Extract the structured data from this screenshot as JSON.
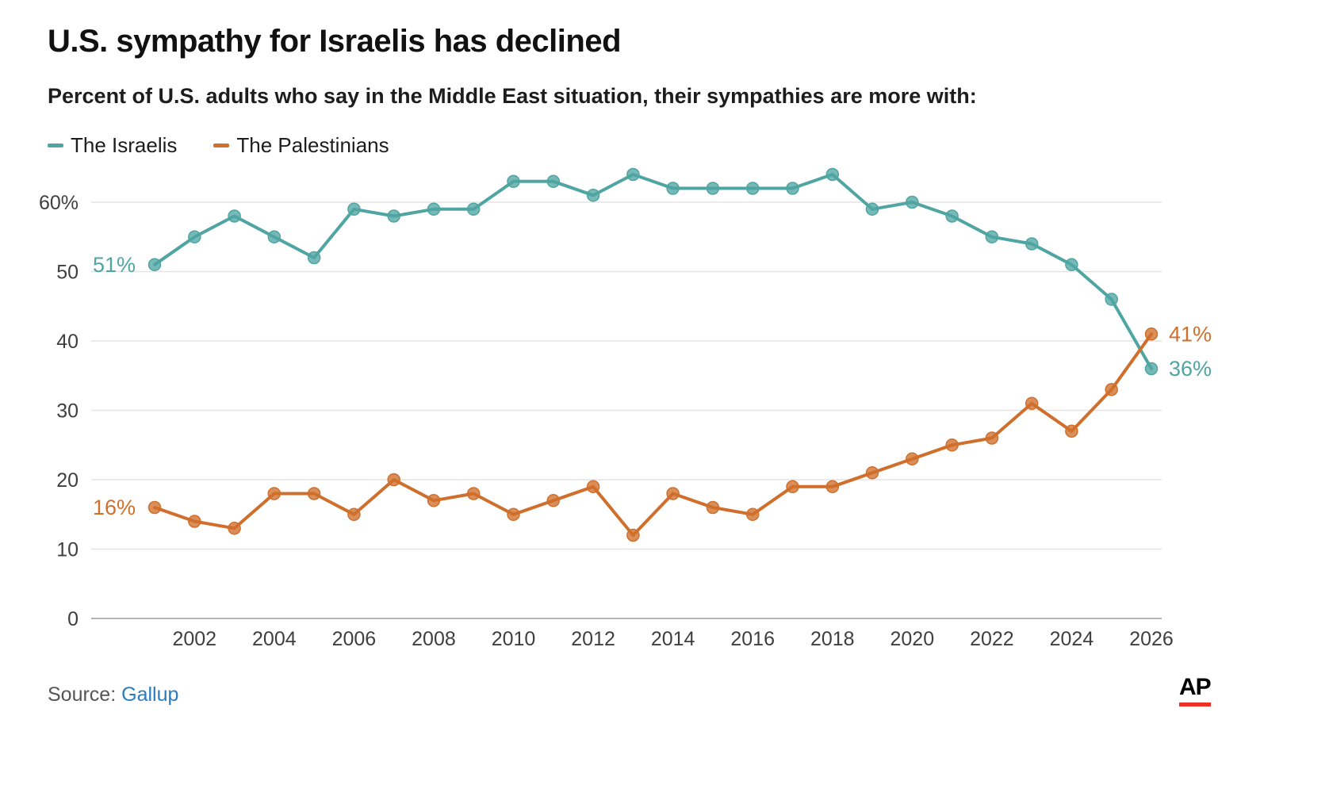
{
  "header": {
    "title": "U.S. sympathy for Israelis has declined",
    "subtitle": "Percent of U.S. adults who say in the Middle East situation, their sympathies are more with:"
  },
  "legend": [
    {
      "label": "The Israelis",
      "color": "#4fa5a2"
    },
    {
      "label": "The Palestinians",
      "color": "#d06f2c"
    }
  ],
  "chart_data": {
    "type": "line",
    "x": [
      2001,
      2002,
      2003,
      2004,
      2005,
      2006,
      2007,
      2008,
      2009,
      2010,
      2011,
      2012,
      2013,
      2014,
      2015,
      2016,
      2017,
      2018,
      2019,
      2020,
      2021,
      2022,
      2023,
      2024,
      2025,
      2026
    ],
    "series": [
      {
        "name": "The Israelis",
        "color": "#4fa5a2",
        "values": [
          51,
          55,
          58,
          55,
          52,
          59,
          58,
          59,
          59,
          63,
          63,
          61,
          64,
          62,
          62,
          62,
          62,
          64,
          59,
          60,
          58,
          55,
          54,
          51,
          46,
          36
        ],
        "start_label": "51%",
        "end_label": "36%"
      },
      {
        "name": "The Palestinians",
        "color": "#d06f2c",
        "values": [
          16,
          14,
          13,
          18,
          18,
          15,
          20,
          17,
          18,
          15,
          17,
          19,
          12,
          18,
          16,
          15,
          19,
          19,
          21,
          23,
          25,
          26,
          31,
          27,
          33,
          41
        ],
        "start_label": "16%",
        "end_label": "41%"
      }
    ],
    "title": "U.S. sympathy for Israelis has declined",
    "xlabel": "",
    "ylabel": "",
    "ylim": [
      0,
      66
    ],
    "yticks": [
      0,
      10,
      20,
      30,
      40,
      50,
      60
    ],
    "ytick_labels": [
      "0",
      "10",
      "20",
      "30",
      "40",
      "50",
      "60%"
    ],
    "xticks": [
      2002,
      2004,
      2006,
      2008,
      2010,
      2012,
      2014,
      2016,
      2018,
      2020,
      2022,
      2024,
      2026
    ],
    "grid": true,
    "legend_position": "top-left"
  },
  "footer": {
    "source_prefix": "Source:",
    "source_link": "Gallup",
    "source_link_color": "#2b7cbf",
    "logo_text": "AP",
    "logo_bar_color": "#ee3124"
  }
}
